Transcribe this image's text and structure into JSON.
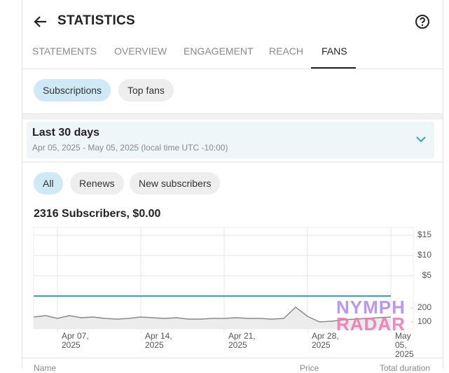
{
  "header": {
    "title": "STATISTICS"
  },
  "tabs": [
    "STATEMENTS",
    "OVERVIEW",
    "ENGAGEMENT",
    "REACH",
    "FANS"
  ],
  "active_tab": 4,
  "chips": [
    "Subscriptions",
    "Top fans"
  ],
  "active_chip": 0,
  "period": {
    "label": "Last 30 days",
    "range": "Apr 05, 2025 - May 05, 2025 (local time UTC -10:00)"
  },
  "filters": [
    "All",
    "Renews",
    "New subscribers"
  ],
  "active_filter": 0,
  "summary": "2316 Subscribers, $0.00",
  "chart_data": {
    "type": "line",
    "categories": [
      null,
      null,
      "Apr 07, 2025",
      null,
      null,
      null,
      null,
      null,
      null,
      "Apr 14, 2025",
      null,
      null,
      null,
      null,
      null,
      null,
      "Apr 21, 2025",
      null,
      null,
      null,
      null,
      null,
      null,
      "Apr 28, 2025",
      null,
      null,
      null,
      null,
      null,
      null,
      "May 05, 2025"
    ],
    "series": [
      {
        "color": "#2aa9b5",
        "values": [
          0,
          0,
          0,
          0,
          0,
          0,
          0,
          0,
          0,
          0,
          0,
          0,
          0,
          0,
          0,
          0,
          0,
          0,
          0,
          0,
          0,
          0,
          0,
          0,
          0,
          0,
          0,
          0,
          0,
          0,
          0
        ]
      },
      {
        "color": "#8a8a8a",
        "axis": "y2",
        "values": [
          135,
          145,
          125,
          145,
          130,
          135,
          125,
          120,
          125,
          135,
          130,
          125,
          130,
          120,
          120,
          125,
          125,
          130,
          125,
          125,
          120,
          125,
          205,
          140,
          100,
          105,
          115,
          120,
          125,
          130,
          135
        ]
      }
    ],
    "ylim": [
      0,
      15
    ],
    "yticks": [
      {
        "value": 5,
        "label": "$5"
      },
      {
        "value": 10,
        "label": "$10"
      },
      {
        "value": 15,
        "label": "$15"
      }
    ],
    "y2lim": [
      50,
      300
    ],
    "y2ticks": [
      100,
      200
    ],
    "grid": true
  },
  "watermark": [
    "NYMPH",
    "RADAR"
  ],
  "table": {
    "columns": [
      "Name",
      "Price",
      "Total duration"
    ]
  }
}
